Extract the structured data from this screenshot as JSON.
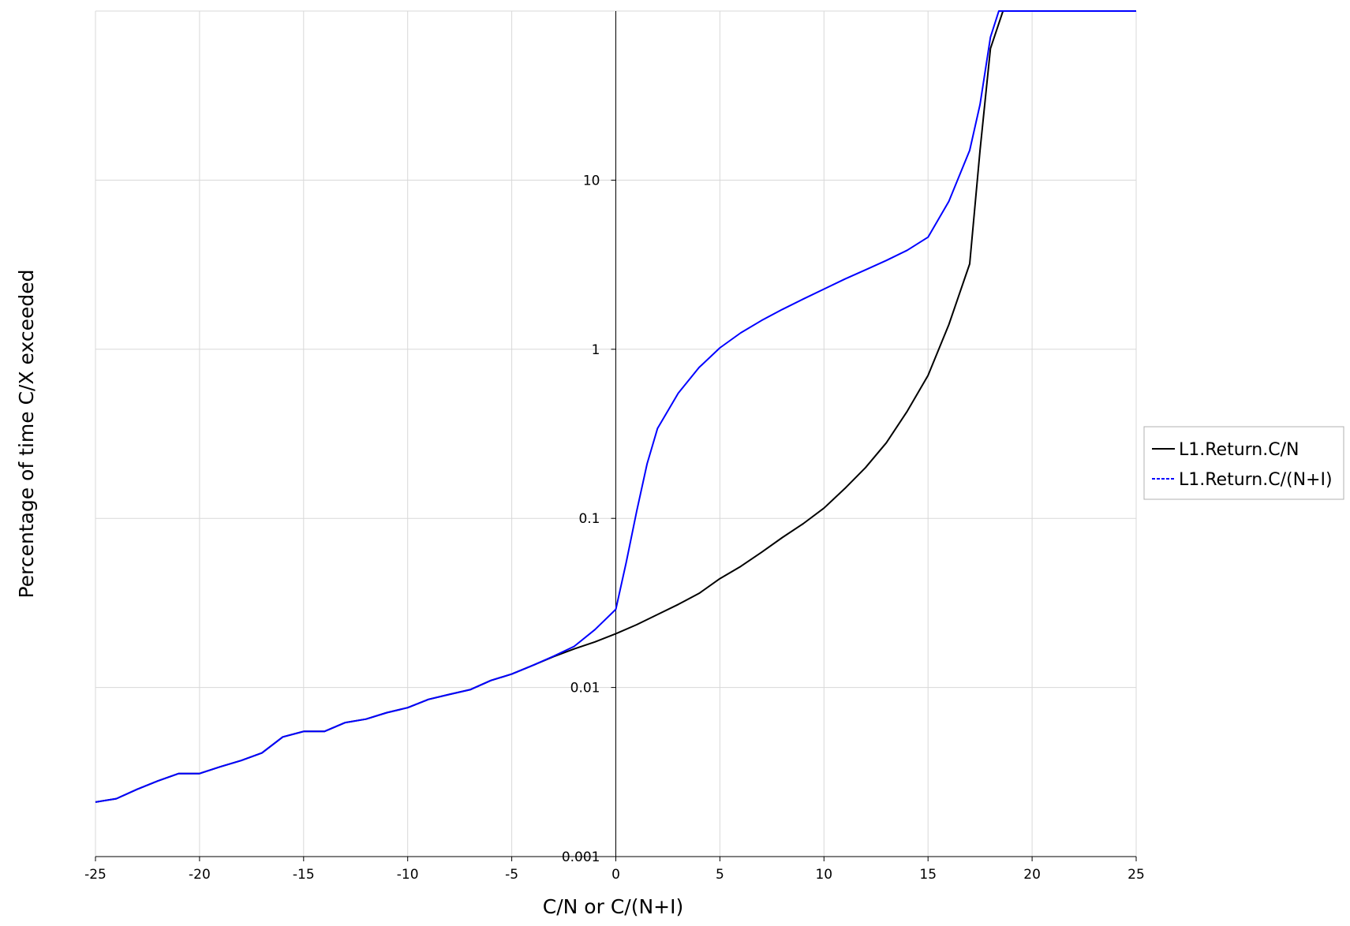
{
  "chart_data": {
    "type": "line",
    "title": "",
    "xlabel": "C/N or C/(N+I)",
    "ylabel": "Percentage of time C/X exceeded",
    "xlim": [
      -25,
      25
    ],
    "ylim": [
      0.001,
      100
    ],
    "y_scale": "log",
    "x_ticks": [
      -25,
      -20,
      -15,
      -10,
      -5,
      0,
      5,
      10,
      15,
      20,
      25
    ],
    "x_tick_labels": [
      "-25",
      "-20",
      "-15",
      "-10",
      "-5",
      "0",
      "5",
      "10",
      "15",
      "20",
      "25"
    ],
    "y_ticks": [
      0.001,
      0.01,
      0.1,
      1,
      10
    ],
    "y_tick_labels": [
      "0.001",
      "0.01",
      "0.1",
      "1",
      "10"
    ],
    "grid": true,
    "legend_position": "right",
    "series": [
      {
        "name": "L1.Return.C/N",
        "color": "#000000",
        "style": "solid",
        "points": [
          [
            -25,
            0.0021
          ],
          [
            -24,
            0.0022
          ],
          [
            -23,
            0.0025
          ],
          [
            -22,
            0.0028
          ],
          [
            -21,
            0.0031
          ],
          [
            -20,
            0.0031
          ],
          [
            -19,
            0.0034
          ],
          [
            -18,
            0.0037
          ],
          [
            -17,
            0.0041
          ],
          [
            -16,
            0.0051
          ],
          [
            -15,
            0.0055
          ],
          [
            -14,
            0.0055
          ],
          [
            -13,
            0.0062
          ],
          [
            -12,
            0.0065
          ],
          [
            -11,
            0.0071
          ],
          [
            -10,
            0.0076
          ],
          [
            -9,
            0.0085
          ],
          [
            -8,
            0.0091
          ],
          [
            -7,
            0.0097
          ],
          [
            -6,
            0.011
          ],
          [
            -5,
            0.012
          ],
          [
            -4,
            0.0135
          ],
          [
            -3,
            0.0152
          ],
          [
            -2,
            0.0169
          ],
          [
            -1,
            0.0186
          ],
          [
            0,
            0.0208
          ],
          [
            1,
            0.0235
          ],
          [
            2,
            0.027
          ],
          [
            3,
            0.031
          ],
          [
            4,
            0.036
          ],
          [
            5,
            0.044
          ],
          [
            6,
            0.052
          ],
          [
            7,
            0.063
          ],
          [
            8,
            0.077
          ],
          [
            9,
            0.093
          ],
          [
            10,
            0.115
          ],
          [
            11,
            0.15
          ],
          [
            12,
            0.2
          ],
          [
            13,
            0.28
          ],
          [
            14,
            0.43
          ],
          [
            15,
            0.7
          ],
          [
            16,
            1.4
          ],
          [
            17,
            3.2
          ],
          [
            17.5,
            15
          ],
          [
            18,
            60
          ],
          [
            18.6,
            100
          ],
          [
            25,
            100
          ]
        ]
      },
      {
        "name": "L1.Return.C/(N+I)",
        "color": "#0000ff",
        "style": "dashed",
        "points": [
          [
            -25,
            0.0021
          ],
          [
            -24,
            0.0022
          ],
          [
            -23,
            0.0025
          ],
          [
            -22,
            0.0028
          ],
          [
            -21,
            0.0031
          ],
          [
            -20,
            0.0031
          ],
          [
            -19,
            0.0034
          ],
          [
            -18,
            0.0037
          ],
          [
            -17,
            0.0041
          ],
          [
            -16,
            0.0051
          ],
          [
            -15,
            0.0055
          ],
          [
            -14,
            0.0055
          ],
          [
            -13,
            0.0062
          ],
          [
            -12,
            0.0065
          ],
          [
            -11,
            0.0071
          ],
          [
            -10,
            0.0076
          ],
          [
            -9,
            0.0085
          ],
          [
            -8,
            0.0091
          ],
          [
            -7,
            0.0097
          ],
          [
            -6,
            0.011
          ],
          [
            -5,
            0.012
          ],
          [
            -4,
            0.0135
          ],
          [
            -3,
            0.0153
          ],
          [
            -2,
            0.0175
          ],
          [
            -1,
            0.022
          ],
          [
            0,
            0.029
          ],
          [
            0.5,
            0.055
          ],
          [
            1,
            0.11
          ],
          [
            1.5,
            0.21
          ],
          [
            2,
            0.34
          ],
          [
            3,
            0.55
          ],
          [
            4,
            0.78
          ],
          [
            5,
            1.02
          ],
          [
            6,
            1.25
          ],
          [
            7,
            1.48
          ],
          [
            8,
            1.72
          ],
          [
            9,
            1.98
          ],
          [
            10,
            2.27
          ],
          [
            11,
            2.6
          ],
          [
            12,
            2.95
          ],
          [
            13,
            3.35
          ],
          [
            14,
            3.85
          ],
          [
            15,
            4.6
          ],
          [
            16,
            7.5
          ],
          [
            17,
            15
          ],
          [
            17.5,
            28
          ],
          [
            18,
            70
          ],
          [
            18.4,
            100
          ],
          [
            25,
            100
          ]
        ]
      }
    ]
  }
}
